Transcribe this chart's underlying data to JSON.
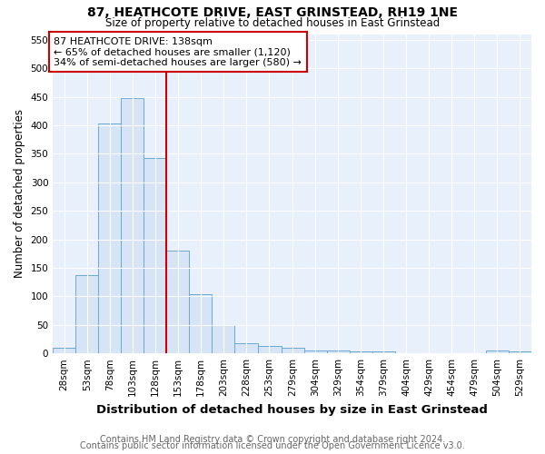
{
  "title": "87, HEATHCOTE DRIVE, EAST GRINSTEAD, RH19 1NE",
  "subtitle": "Size of property relative to detached houses in East Grinstead",
  "xlabel": "Distribution of detached houses by size in East Grinstead",
  "ylabel": "Number of detached properties",
  "footer1": "Contains HM Land Registry data © Crown copyright and database right 2024.",
  "footer2": "Contains public sector information licensed under the Open Government Licence v3.0.",
  "annotation_line1": "87 HEATHCOTE DRIVE: 138sqm",
  "annotation_line2": "← 65% of detached houses are smaller (1,120)",
  "annotation_line3": "34% of semi-detached houses are larger (580) →",
  "bin_edges": [
    15.5,
    40.5,
    65.5,
    90.5,
    115.5,
    140.5,
    165.5,
    190.5,
    215.5,
    240.5,
    266.5,
    291.5,
    316.5,
    341.5,
    366.5,
    391.5,
    416.5,
    441.5,
    466.5,
    491.5,
    516.5,
    541.5
  ],
  "bin_centers": [
    28,
    53,
    78,
    103,
    128,
    153,
    178,
    203,
    228,
    253,
    279,
    304,
    329,
    354,
    379,
    404,
    429,
    454,
    479,
    504,
    529
  ],
  "bar_heights": [
    10,
    138,
    403,
    448,
    343,
    180,
    104,
    50,
    18,
    13,
    10,
    5,
    5,
    4,
    4,
    0,
    0,
    0,
    0,
    5,
    4
  ],
  "bar_color": "#d6e4f5",
  "bar_edgecolor": "#6aaad4",
  "red_line_x": 140.5,
  "red_line_color": "#cc0000",
  "annotation_box_edgecolor": "#cc0000",
  "annotation_box_facecolor": "#ffffff",
  "ylim": [
    0,
    560
  ],
  "yticks": [
    0,
    50,
    100,
    150,
    200,
    250,
    300,
    350,
    400,
    450,
    500,
    550
  ],
  "plot_bg_color": "#e8f0fb",
  "title_fontsize": 10,
  "subtitle_fontsize": 8.5,
  "xlabel_fontsize": 9.5,
  "ylabel_fontsize": 8.5,
  "tick_fontsize": 7.5,
  "annotation_fontsize": 8,
  "footer_fontsize": 7
}
